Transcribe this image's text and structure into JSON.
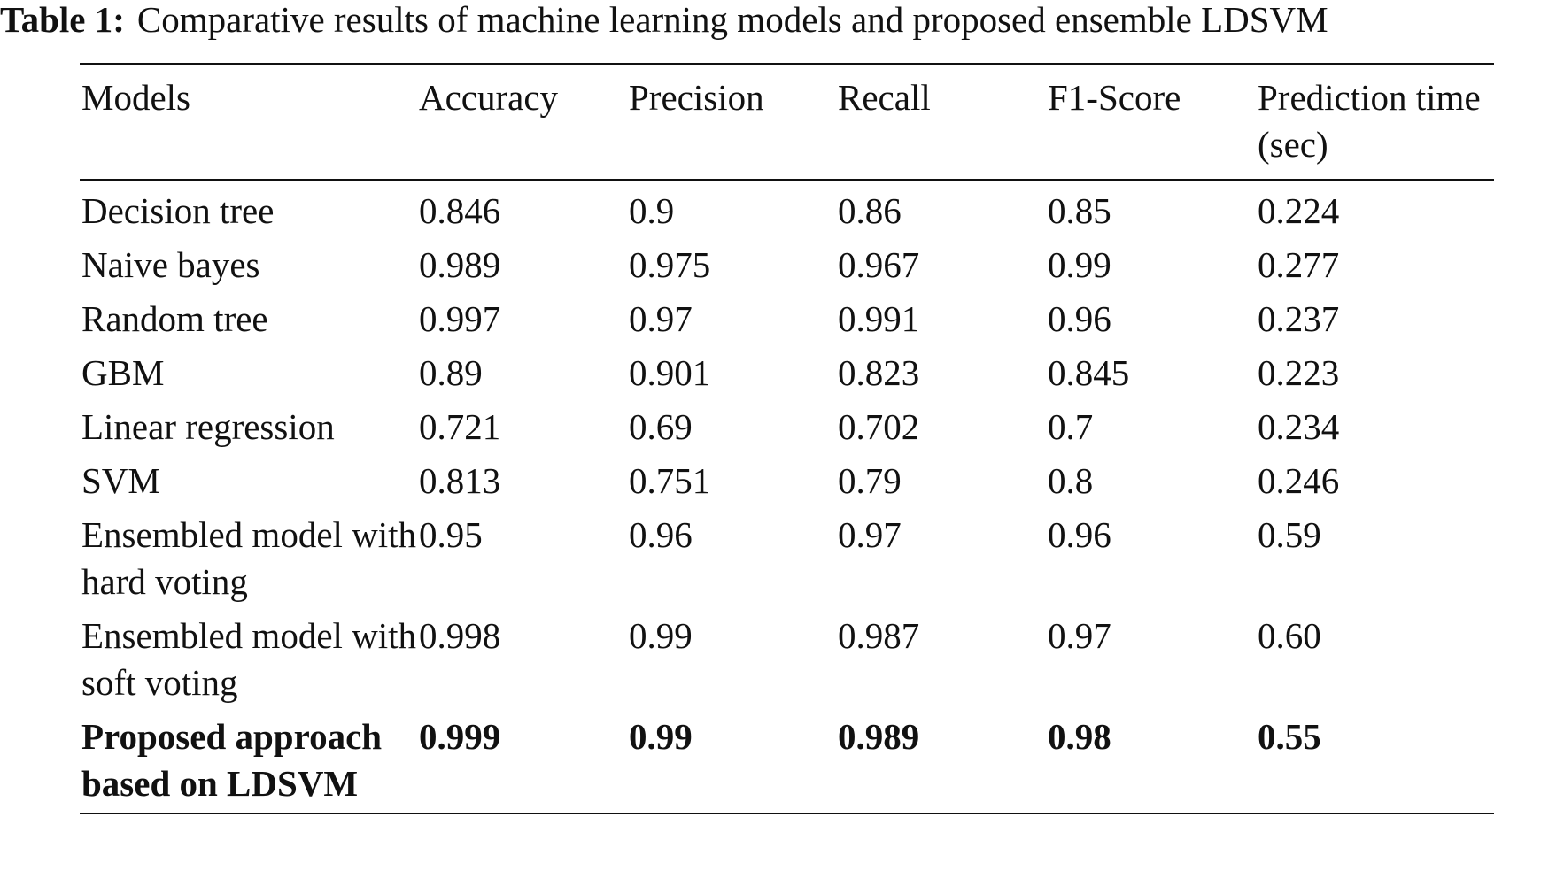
{
  "caption": {
    "label": "Table 1:",
    "text": "Comparative results of machine learning models and proposed ensemble LDSVM"
  },
  "table": {
    "header": [
      "Models",
      "Accuracy",
      "Precision",
      "Recall",
      "F1-Score",
      "Prediction time (sec)"
    ],
    "rows": [
      [
        "Decision tree",
        "0.846",
        "0.9",
        "0.86",
        "0.85",
        "0.224"
      ],
      [
        "Naive bayes",
        "0.989",
        "0.975",
        "0.967",
        "0.99",
        "0.277"
      ],
      [
        "Random tree",
        "0.997",
        "0.97",
        "0.991",
        "0.96",
        "0.237"
      ],
      [
        "GBM",
        "0.89",
        "0.901",
        "0.823",
        "0.845",
        "0.223"
      ],
      [
        "Linear regression",
        "0.721",
        "0.69",
        "0.702",
        "0.7",
        "0.234"
      ],
      [
        "SVM",
        "0.813",
        "0.751",
        "0.79",
        "0.8",
        "0.246"
      ],
      [
        "Ensembled model with hard voting",
        "0.95",
        "0.96",
        "0.97",
        "0.96",
        "0.59"
      ],
      [
        "Ensembled model with soft voting",
        "0.998",
        "0.99",
        "0.987",
        "0.97",
        "0.60"
      ],
      [
        "Proposed approach based on LDSVM",
        "0.999",
        "0.99",
        "0.989",
        "0.98",
        "0.55"
      ]
    ]
  }
}
